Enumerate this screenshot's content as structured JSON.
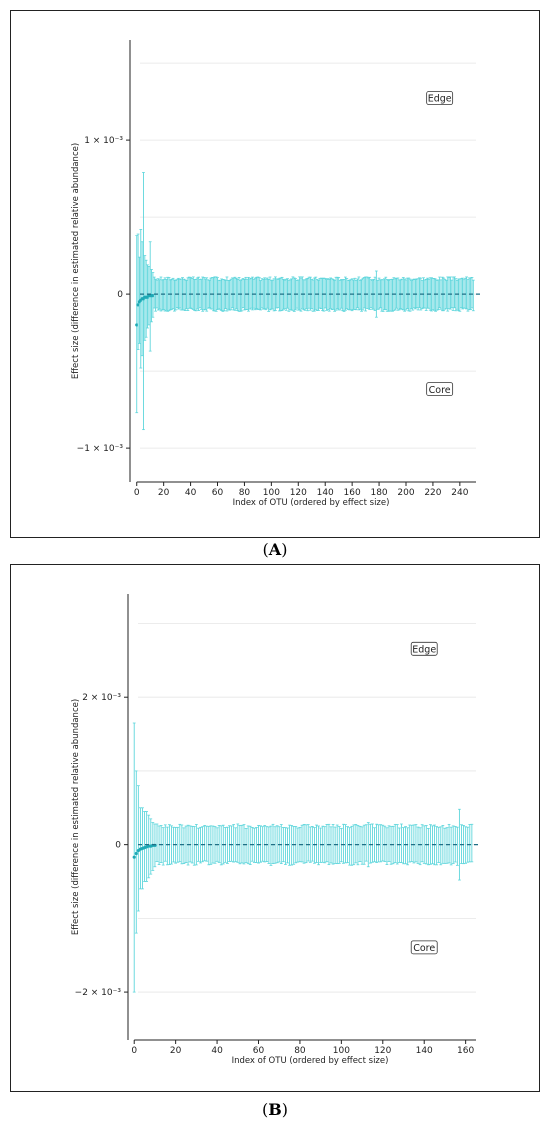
{
  "figure": {
    "panel_labels": [
      "A",
      "B"
    ]
  },
  "colors": {
    "error_bar": "#5fd6dc",
    "point": "#1fa9b5",
    "zero_line": "#1f6f86",
    "grid": "#e6e6e6",
    "axis": "#222222"
  },
  "chart_data": [
    {
      "panel": "A",
      "type": "scatter",
      "title": "",
      "xlabel": "Index of OTU (ordered by effect size)",
      "ylabel": "Effect size (difference in estimated relative abundance)",
      "x_ticks": [
        0,
        20,
        40,
        60,
        80,
        100,
        120,
        140,
        160,
        180,
        200,
        220,
        240
      ],
      "xlim": [
        -5,
        252
      ],
      "y_ticks": [
        -0.001,
        0,
        0.001
      ],
      "y_tick_labels": [
        "−1 × 10⁻³",
        "0",
        "1 × 10⁻³"
      ],
      "ylim": [
        -0.00122,
        0.00165
      ],
      "n_otus": 251,
      "grid": true,
      "zero_line": "dashed",
      "regions": [
        {
          "label": "Edge",
          "x": 225,
          "y": 0.00127
        },
        {
          "label": "Core",
          "x": 225,
          "y": -0.00062
        }
      ],
      "first_points": [
        {
          "x": 0,
          "y": -0.0002,
          "lower": -0.00077,
          "upper": 0.00038
        },
        {
          "x": 1,
          "y": -7e-05,
          "lower": -0.00036,
          "upper": 0.00039
        },
        {
          "x": 2,
          "y": -5e-05,
          "lower": -0.00032,
          "upper": 0.00024
        },
        {
          "x": 3,
          "y": -4e-05,
          "lower": -0.00048,
          "upper": 0.00042
        },
        {
          "x": 4,
          "y": -3e-05,
          "lower": -0.0004,
          "upper": 0.00034
        },
        {
          "x": 5,
          "y": -3e-05,
          "lower": -0.00088,
          "upper": 0.00079
        },
        {
          "x": 6,
          "y": -2e-05,
          "lower": -0.0003,
          "upper": 0.00025
        },
        {
          "x": 7,
          "y": -2e-05,
          "lower": -0.00028,
          "upper": 0.00022
        },
        {
          "x": 8,
          "y": -2e-05,
          "lower": -0.00022,
          "upper": 0.00019
        },
        {
          "x": 9,
          "y": -1e-05,
          "lower": -0.0002,
          "upper": 0.00018
        },
        {
          "x": 10,
          "y": -1e-05,
          "lower": -0.00037,
          "upper": 0.00034
        },
        {
          "x": 11,
          "y": -1e-05,
          "lower": -0.00018,
          "upper": 0.00016
        },
        {
          "x": 12,
          "y": -1e-05,
          "lower": -0.00015,
          "upper": 0.00014
        }
      ],
      "baseline": {
        "y": 0,
        "half_width": 0.0001
      },
      "outliers": [
        {
          "x": 178,
          "lower": -0.00015,
          "upper": 0.00015
        }
      ]
    },
    {
      "panel": "B",
      "type": "scatter",
      "title": "",
      "xlabel": "Index of OTU (ordered by effect size)",
      "ylabel": "Effect size (difference in estimated relative abundance)",
      "x_ticks": [
        0,
        20,
        40,
        60,
        80,
        100,
        120,
        140,
        160
      ],
      "xlim": [
        -3,
        165
      ],
      "y_ticks": [
        -0.002,
        0,
        0.002
      ],
      "y_tick_labels": [
        "−2 × 10⁻³",
        "0",
        "2 × 10⁻³"
      ],
      "ylim": [
        -0.00265,
        0.0034
      ],
      "n_otus": 164,
      "grid": true,
      "zero_line": "dashed",
      "regions": [
        {
          "label": "Edge",
          "x": 140,
          "y": 0.00265
        },
        {
          "label": "Core",
          "x": 140,
          "y": -0.0014
        }
      ],
      "first_points": [
        {
          "x": 0,
          "y": -0.00017,
          "lower": -0.002,
          "upper": 0.00165
        },
        {
          "x": 1,
          "y": -0.00012,
          "lower": -0.0012,
          "upper": 0.001
        },
        {
          "x": 2,
          "y": -8e-05,
          "lower": -0.0009,
          "upper": 0.0008
        },
        {
          "x": 3,
          "y": -6e-05,
          "lower": -0.0006,
          "upper": 0.0005
        },
        {
          "x": 4,
          "y": -5e-05,
          "lower": -0.0006,
          "upper": 0.0005
        },
        {
          "x": 5,
          "y": -4e-05,
          "lower": -0.0005,
          "upper": 0.00045
        },
        {
          "x": 6,
          "y": -3e-05,
          "lower": -0.0005,
          "upper": 0.00045
        },
        {
          "x": 7,
          "y": -2e-05,
          "lower": -0.00045,
          "upper": 0.0004
        },
        {
          "x": 8,
          "y": -2e-05,
          "lower": -0.0004,
          "upper": 0.00035
        },
        {
          "x": 9,
          "y": -1e-05,
          "lower": -0.00035,
          "upper": 0.0003
        },
        {
          "x": 10,
          "y": -1e-05,
          "lower": -0.0003,
          "upper": 0.00028
        }
      ],
      "baseline": {
        "y": 0,
        "half_width": 0.00025
      },
      "outliers": [
        {
          "x": 157,
          "lower": -0.00048,
          "upper": 0.00048
        },
        {
          "x": 113,
          "lower": -0.0003,
          "upper": 0.0003
        }
      ]
    }
  ]
}
